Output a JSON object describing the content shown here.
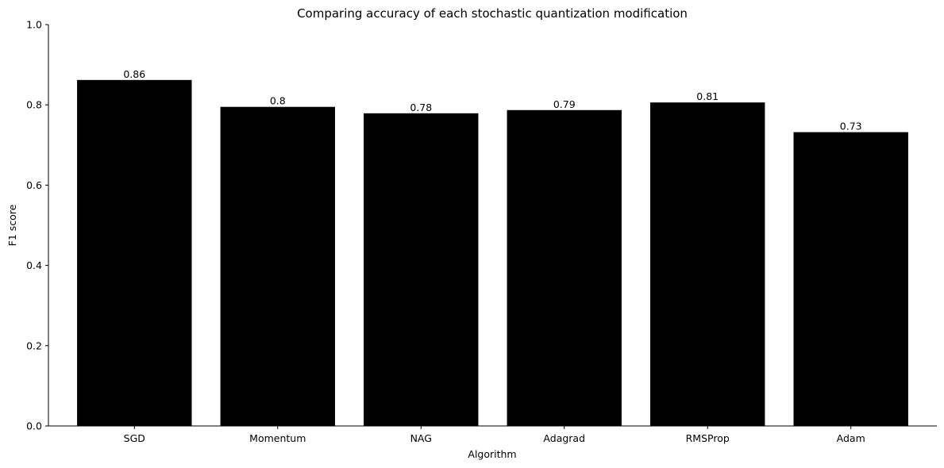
{
  "chart_data": {
    "type": "bar",
    "title": "Comparing accuracy of each stochastic quantization modification",
    "xlabel": "Algorithm",
    "ylabel": "F1 score",
    "categories": [
      "SGD",
      "Momentum",
      "NAG",
      "Adagrad",
      "RMSProp",
      "Adam"
    ],
    "values": [
      0.862,
      0.795,
      0.779,
      0.787,
      0.806,
      0.732
    ],
    "data_labels": [
      "0.86",
      "0.8",
      "0.78",
      "0.79",
      "0.81",
      "0.73"
    ],
    "ylim": [
      0,
      1
    ],
    "yticks": [
      0.0,
      0.2,
      0.4,
      0.6,
      0.8,
      1.0
    ],
    "ytick_labels": [
      "0.0",
      "0.2",
      "0.4",
      "0.6",
      "0.8",
      "1.0"
    ],
    "grid": false,
    "bar_color": "#000000"
  }
}
